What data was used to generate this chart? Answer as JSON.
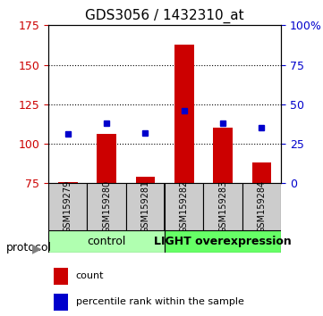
{
  "title": "GDS3056 / 1432310_at",
  "samples": [
    "GSM159279",
    "GSM159280",
    "GSM159281",
    "GSM159282",
    "GSM159283",
    "GSM159284"
  ],
  "red_values": [
    76,
    106,
    79,
    163,
    110,
    88
  ],
  "blue_values": [
    106,
    113,
    107,
    121,
    113,
    110
  ],
  "ylim_left": [
    75,
    175
  ],
  "ylim_right": [
    0,
    100
  ],
  "yticks_left": [
    75,
    100,
    125,
    150,
    175
  ],
  "yticks_right": [
    0,
    25,
    50,
    75,
    100
  ],
  "ytick_labels_right": [
    "0",
    "25",
    "50",
    "75",
    "100%"
  ],
  "groups": [
    {
      "label": "control",
      "samples": [
        0,
        1,
        2
      ],
      "color": "#b0ffb0"
    },
    {
      "label": "LIGHT overexpression",
      "samples": [
        3,
        4,
        5
      ],
      "color": "#66ff66"
    }
  ],
  "bar_color": "#cc0000",
  "dot_color": "#0000cc",
  "background_color": "#ffffff",
  "protocol_label": "protocol",
  "legend_count_label": "count",
  "legend_pct_label": "percentile rank within the sample",
  "grid_color": "#000000",
  "xlabel_color": "#000000",
  "left_axis_color": "#cc0000",
  "right_axis_color": "#0000cc"
}
